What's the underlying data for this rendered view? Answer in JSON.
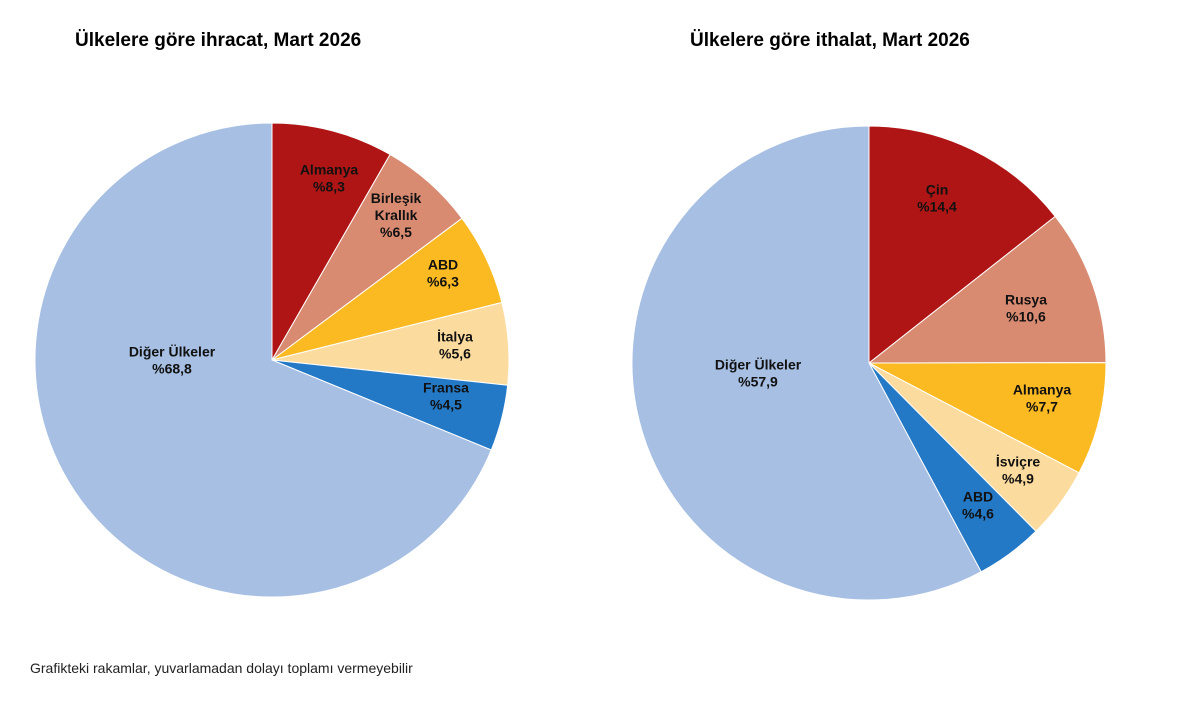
{
  "chart_data": [
    {
      "type": "pie",
      "title": "Ülkelere göre ihracat, Mart 2026",
      "slices": [
        {
          "label": [
            "Almanya"
          ],
          "value_label": "%8,3",
          "value": 8.3,
          "color": "#B01515"
        },
        {
          "label": [
            "Birleşik",
            "Krallık"
          ],
          "value_label": "%6,5",
          "value": 6.5,
          "color": "#D98B72"
        },
        {
          "label": [
            "ABD"
          ],
          "value_label": "%6,3",
          "value": 6.3,
          "color": "#FBBA22"
        },
        {
          "label": [
            "İtalya"
          ],
          "value_label": "%5,6",
          "value": 5.6,
          "color": "#FCDC9E"
        },
        {
          "label": [
            "Fransa"
          ],
          "value_label": "%4,5",
          "value": 4.5,
          "color": "#2479C7"
        },
        {
          "label": [
            "Diğer Ülkeler"
          ],
          "value_label": "%68,8",
          "value": 68.8,
          "color": "#A6BFE3"
        }
      ]
    },
    {
      "type": "pie",
      "title": "Ülkelere göre ithalat, Mart 2026",
      "slices": [
        {
          "label": [
            "Çin"
          ],
          "value_label": "%14,4",
          "value": 14.4,
          "color": "#B01515"
        },
        {
          "label": [
            "Rusya"
          ],
          "value_label": "%10,6",
          "value": 10.6,
          "color": "#D98B72"
        },
        {
          "label": [
            "Almanya"
          ],
          "value_label": "%7,7",
          "value": 7.7,
          "color": "#FBBA22"
        },
        {
          "label": [
            "İsviçre"
          ],
          "value_label": "%4,9",
          "value": 4.9,
          "color": "#FCDC9E"
        },
        {
          "label": [
            "ABD"
          ],
          "value_label": "%4,6",
          "value": 4.6,
          "color": "#2479C7"
        },
        {
          "label": [
            "Diğer Ülkeler"
          ],
          "value_label": "%57,9",
          "value": 57.9,
          "color": "#A6BFE3"
        }
      ]
    }
  ],
  "footnote": "Grafikteki rakamlar, yuvarlamadan dolayı toplamı vermeyebilir"
}
